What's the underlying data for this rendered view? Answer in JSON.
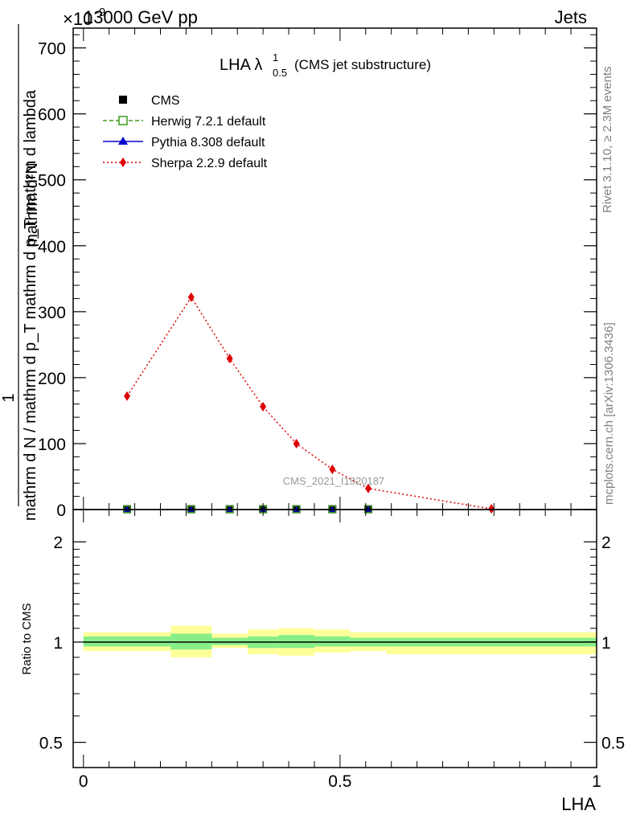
{
  "header": {
    "left": "13000 GeV pp",
    "right": "Jets",
    "scale_exponent": "×10",
    "scale_power": "-9"
  },
  "side_text": {
    "rivet": "Rivet 3.1.10, ≥ 2.3M events",
    "mcplots": "mcplots.cern.ch [arXiv:1306.3436]"
  },
  "watermark": "CMS_2021_I1920187",
  "chart_data": [
    {
      "type": "line",
      "title": "LHA λ",
      "title_sup": "1",
      "title_sub": "0.5",
      "title_suffix": "(CMS jet substructure)",
      "ylabel_num": "mathrm d²N",
      "ylabel_num_frac": "1",
      "ylabel_den": "mathrm d N / mathrm d p_T mathrm d p_T mathrm d lambda",
      "ylim": [
        0,
        730
      ],
      "yticks": [
        0,
        100,
        200,
        300,
        400,
        500,
        600,
        700
      ],
      "xlim": [
        -0.02,
        1.0
      ],
      "legend_placement": "top-left",
      "legend": [
        {
          "name": "CMS",
          "color": "#000000",
          "marker": "square-filled",
          "line": "none"
        },
        {
          "name": "Herwig 7.2.1 default",
          "color": "#3a9a1a",
          "marker": "square-open",
          "line": "dashed"
        },
        {
          "name": "Pythia 8.308 default",
          "color": "#0000cc",
          "marker": "triangle",
          "line": "solid"
        },
        {
          "name": "Sherpa 2.2.9 default",
          "color": "#dd0000",
          "marker": "diamond",
          "line": "dotted"
        }
      ],
      "series": [
        {
          "name": "CMS",
          "x": [
            0.085,
            0.21,
            0.285,
            0.35,
            0.415,
            0.485,
            0.555
          ],
          "y": [
            0.5,
            0.5,
            0.5,
            0.5,
            0.5,
            0.5,
            0.5
          ]
        },
        {
          "name": "Herwig 7.2.1 default",
          "x": [
            0.085,
            0.21,
            0.285,
            0.35,
            0.415,
            0.485,
            0.555
          ],
          "y": [
            0.5,
            0.5,
            0.5,
            0.5,
            0.5,
            0.5,
            0.5
          ]
        },
        {
          "name": "Pythia 8.308 default",
          "x": [
            0.085,
            0.21,
            0.285,
            0.35,
            0.415,
            0.485,
            0.555
          ],
          "y": [
            0.5,
            0.5,
            0.5,
            0.5,
            0.5,
            0.5,
            0.5
          ]
        },
        {
          "name": "Sherpa 2.2.9 default",
          "x": [
            0.085,
            0.21,
            0.285,
            0.35,
            0.415,
            0.485,
            0.555,
            0.795
          ],
          "y": [
            172,
            322,
            229,
            156,
            100,
            61,
            32,
            1
          ]
        }
      ]
    },
    {
      "type": "area",
      "ylabel": "Ratio to CMS",
      "xlabel": "LHA",
      "ylim": [
        0.42,
        2.5
      ],
      "log_y": true,
      "yticks": [
        0.5,
        1,
        2
      ],
      "xlim": [
        -0.02,
        1.0
      ],
      "xticks": [
        0,
        0.5,
        1
      ],
      "xtick_labels": [
        "0",
        "0.5",
        "1"
      ],
      "reference_line": 1,
      "bands": [
        {
          "x0": 0.0,
          "x1": 0.17,
          "inner": [
            0.97,
            1.04
          ],
          "outer": [
            0.94,
            1.07
          ]
        },
        {
          "x0": 0.17,
          "x1": 0.25,
          "inner": [
            0.95,
            1.06
          ],
          "outer": [
            0.9,
            1.12
          ]
        },
        {
          "x0": 0.25,
          "x1": 0.32,
          "inner": [
            0.98,
            1.03
          ],
          "outer": [
            0.96,
            1.06
          ]
        },
        {
          "x0": 0.32,
          "x1": 0.38,
          "inner": [
            0.96,
            1.04
          ],
          "outer": [
            0.92,
            1.09
          ]
        },
        {
          "x0": 0.38,
          "x1": 0.45,
          "inner": [
            0.96,
            1.05
          ],
          "outer": [
            0.91,
            1.1
          ]
        },
        {
          "x0": 0.45,
          "x1": 0.52,
          "inner": [
            0.97,
            1.04
          ],
          "outer": [
            0.93,
            1.09
          ]
        },
        {
          "x0": 0.52,
          "x1": 0.59,
          "inner": [
            0.97,
            1.03
          ],
          "outer": [
            0.94,
            1.07
          ]
        },
        {
          "x0": 0.59,
          "x1": 1.0,
          "inner": [
            0.97,
            1.03
          ],
          "outer": [
            0.92,
            1.07
          ]
        }
      ],
      "colors": {
        "inner": "#88ee88",
        "outer": "#ffff99"
      }
    }
  ]
}
